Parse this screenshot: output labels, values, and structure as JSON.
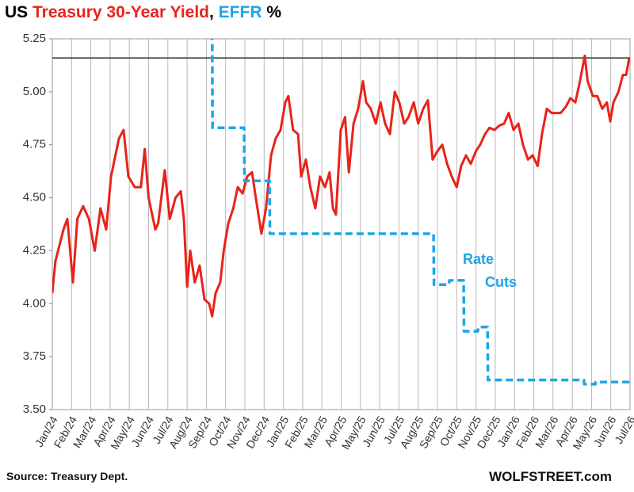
{
  "chart_data": {
    "type": "line",
    "title_parts": [
      {
        "text": "US ",
        "color": "#000000"
      },
      {
        "text": "Treasury 30-Year Yield",
        "color": "#e8231a"
      },
      {
        "text": ", ",
        "color": "#000000"
      },
      {
        "text": "EFFR",
        "color": "#1ea5e6"
      },
      {
        "text": " %",
        "color": "#000000"
      }
    ],
    "annotations": [
      {
        "text": "Rate",
        "color": "#1ea5e6"
      },
      {
        "text": "Cuts",
        "color": "#1ea5e6"
      }
    ],
    "source": "Source: Treasury Dept.",
    "credit": "WOLFSTREET.com",
    "xlim": [
      0,
      30
    ],
    "xticks": [
      {
        "value": 0,
        "label": "Jan/24"
      },
      {
        "value": 1,
        "label": "Feb/24"
      },
      {
        "value": 2,
        "label": "Mar/24"
      },
      {
        "value": 3,
        "label": "Apr/24"
      },
      {
        "value": 4,
        "label": "May/24"
      },
      {
        "value": 5,
        "label": "Jun/24"
      },
      {
        "value": 6,
        "label": "Jul/24"
      },
      {
        "value": 7,
        "label": "Aug/24"
      },
      {
        "value": 8,
        "label": "Sep/24"
      },
      {
        "value": 9,
        "label": "Oct/24"
      },
      {
        "value": 10,
        "label": "Nov/24"
      },
      {
        "value": 11,
        "label": "Dec/24"
      },
      {
        "value": 12,
        "label": "Jan/25"
      },
      {
        "value": 13,
        "label": "Feb/25"
      },
      {
        "value": 14,
        "label": "Mar/25"
      },
      {
        "value": 15,
        "label": "Apr/25"
      },
      {
        "value": 16,
        "label": "May/25"
      },
      {
        "value": 17,
        "label": "Jun/25"
      },
      {
        "value": 18,
        "label": "Jul/25"
      },
      {
        "value": 19,
        "label": "Aug/25"
      },
      {
        "value": 20,
        "label": "Sep/25"
      },
      {
        "value": 21,
        "label": "Oct/25"
      },
      {
        "value": 22,
        "label": "Nov/25"
      },
      {
        "value": 23,
        "label": "Dec/25"
      },
      {
        "value": 24,
        "label": "Jan/26"
      },
      {
        "value": 25,
        "label": "Feb/26"
      },
      {
        "value": 26,
        "label": "Mar/26"
      },
      {
        "value": 27,
        "label": "Apr/26"
      },
      {
        "value": 28,
        "label": "May/26"
      },
      {
        "value": 29,
        "label": "Jun/26"
      },
      {
        "value": 30,
        "label": "Jul/26"
      }
    ],
    "ylim": [
      3.5,
      5.25
    ],
    "yticks": [
      {
        "value": 3.5,
        "label": "3.50"
      },
      {
        "value": 3.75,
        "label": "3.75"
      },
      {
        "value": 4,
        "label": "4.00"
      },
      {
        "value": 4.25,
        "label": "4.25"
      },
      {
        "value": 4.5,
        "label": "4.50"
      },
      {
        "value": 4.75,
        "label": "4.75"
      },
      {
        "value": 5,
        "label": "5.00"
      },
      {
        "value": 5.25,
        "label": "5.25"
      }
    ],
    "grid": "x",
    "hline": {
      "value": 5.16,
      "color": "#333333"
    },
    "series": [
      {
        "color": "#e8231a",
        "dashed": false,
        "x": [
          0,
          0.16,
          0.58,
          0.78,
          1.07,
          1.3,
          1.6,
          1.9,
          2.2,
          2.5,
          2.8,
          3.05,
          3.46,
          3.7,
          3.95,
          4.28,
          4.6,
          4.8,
          5.0,
          5.35,
          5.5,
          5.84,
          6.1,
          6.4,
          6.67,
          6.83,
          7.0,
          7.16,
          7.4,
          7.65,
          7.9,
          8.15,
          8.3,
          8.48,
          8.72,
          8.9,
          9.14,
          9.4,
          9.63,
          9.88,
          10.12,
          10.37,
          10.6,
          10.86,
          11.1,
          11.36,
          11.6,
          11.85,
          12.1,
          12.26,
          12.5,
          12.76,
          12.92,
          13.17,
          13.4,
          13.66,
          13.9,
          14.16,
          14.4,
          14.57,
          14.73,
          14.98,
          15.2,
          15.4,
          15.64,
          15.88,
          16.13,
          16.3,
          16.54,
          16.8,
          17.04,
          17.28,
          17.53,
          17.78,
          18.02,
          18.27,
          18.5,
          18.77,
          19.0,
          19.26,
          19.5,
          19.75,
          20.0,
          20.25,
          20.5,
          20.74,
          21.0,
          21.23,
          21.48,
          21.73,
          22.0,
          22.22,
          22.47,
          22.7,
          22.96,
          23.2,
          23.46,
          23.7,
          23.95,
          24.2,
          24.44,
          24.7,
          24.94,
          25.2,
          25.43,
          25.68,
          25.93,
          26.17,
          26.4,
          26.67,
          26.9,
          27.16,
          27.4,
          27.65,
          27.8,
          28.07,
          28.3,
          28.56,
          28.8,
          28.97,
          29.14,
          29.4,
          29.63,
          29.8,
          29.96
        ],
        "values": [
          4.05,
          4.2,
          4.35,
          4.4,
          4.1,
          4.4,
          4.46,
          4.4,
          4.25,
          4.45,
          4.35,
          4.6,
          4.78,
          4.82,
          4.6,
          4.55,
          4.55,
          4.73,
          4.5,
          4.35,
          4.38,
          4.63,
          4.4,
          4.5,
          4.53,
          4.4,
          4.08,
          4.25,
          4.1,
          4.18,
          4.02,
          4.0,
          3.94,
          4.05,
          4.1,
          4.25,
          4.38,
          4.45,
          4.55,
          4.52,
          4.6,
          4.62,
          4.48,
          4.33,
          4.45,
          4.7,
          4.78,
          4.82,
          4.95,
          4.98,
          4.82,
          4.8,
          4.6,
          4.68,
          4.55,
          4.45,
          4.6,
          4.55,
          4.62,
          4.45,
          4.42,
          4.82,
          4.88,
          4.62,
          4.85,
          4.92,
          5.05,
          4.95,
          4.92,
          4.85,
          4.95,
          4.85,
          4.8,
          5.0,
          4.95,
          4.85,
          4.88,
          4.95,
          4.85,
          4.92,
          4.96,
          4.68,
          4.72,
          4.75,
          4.66,
          4.6,
          4.55,
          4.65,
          4.7,
          4.66,
          4.72,
          4.75,
          4.8,
          4.83,
          4.82,
          4.84,
          4.85,
          4.9,
          4.82,
          4.85,
          4.75,
          4.68,
          4.7,
          4.65,
          4.8,
          4.92,
          4.9,
          4.9,
          4.9,
          4.93,
          4.97,
          4.95,
          5.05,
          5.17,
          5.05,
          4.98,
          4.98,
          4.92,
          4.95,
          4.86,
          4.95,
          5.0,
          5.08,
          5.08,
          5.16
        ]
      },
      {
        "color": "#1ea5e6",
        "dashed": true,
        "x": [
          8.3,
          8.32,
          9.96,
          9.98,
          11.28,
          11.3,
          19.8,
          19.82,
          20.6,
          20.62,
          21.36,
          21.38,
          22.1,
          22.12,
          22.6,
          22.62,
          27.6,
          27.62,
          28.2,
          28.22,
          30
        ],
        "values": [
          5.33,
          4.83,
          4.83,
          4.58,
          4.58,
          4.33,
          4.33,
          4.09,
          4.09,
          4.11,
          4.11,
          3.87,
          3.87,
          3.89,
          3.89,
          3.64,
          3.64,
          3.62,
          3.62,
          3.63,
          3.63
        ]
      }
    ]
  }
}
